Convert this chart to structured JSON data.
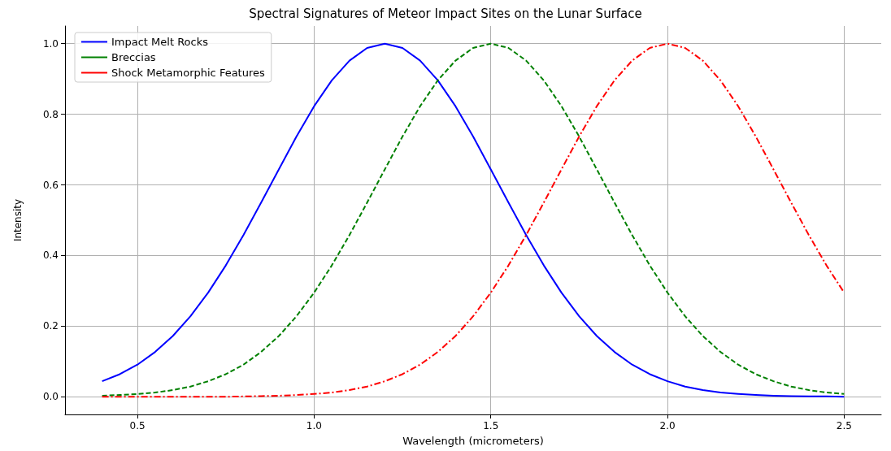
{
  "chart_data": {
    "type": "line",
    "title": "Spectral Signatures of Meteor Impact Sites on the Lunar Surface",
    "xlabel": "Wavelength (micrometers)",
    "ylabel": "Intensity",
    "x": [
      0.4,
      0.45,
      0.5,
      0.55,
      0.6,
      0.65,
      0.7,
      0.75,
      0.8,
      0.85,
      0.9,
      0.95,
      1.0,
      1.05,
      1.1,
      1.15,
      1.2,
      1.25,
      1.3,
      1.35,
      1.4,
      1.45,
      1.5,
      1.55,
      1.6,
      1.65,
      1.7,
      1.75,
      1.8,
      1.85,
      1.9,
      1.95,
      2.0,
      2.05,
      2.1,
      2.15,
      2.2,
      2.25,
      2.3,
      2.35,
      2.4,
      2.45,
      2.5
    ],
    "series": [
      {
        "name": "Impact Melt Rocks",
        "color": "#0000ff",
        "line_style": "solid",
        "values": [
          0.044,
          0.064,
          0.091,
          0.127,
          0.172,
          0.228,
          0.295,
          0.372,
          0.458,
          0.55,
          0.644,
          0.737,
          0.823,
          0.896,
          0.952,
          0.988,
          1,
          0.988,
          0.952,
          0.896,
          0.823,
          0.737,
          0.644,
          0.55,
          0.458,
          0.372,
          0.295,
          0.228,
          0.172,
          0.127,
          0.091,
          0.064,
          0.044,
          0.029,
          0.019,
          0.012,
          0.008,
          0.005,
          0.003,
          0.002,
          0.001,
          0.001,
          0.0
        ]
      },
      {
        "name": "Breccias",
        "color": "#008000",
        "line_style": "dashed",
        "values": [
          0.003,
          0.005,
          0.008,
          0.012,
          0.019,
          0.029,
          0.044,
          0.064,
          0.091,
          0.127,
          0.172,
          0.228,
          0.295,
          0.372,
          0.458,
          0.55,
          0.644,
          0.737,
          0.823,
          0.896,
          0.952,
          0.988,
          1,
          0.988,
          0.952,
          0.896,
          0.823,
          0.737,
          0.644,
          0.55,
          0.458,
          0.372,
          0.295,
          0.228,
          0.172,
          0.127,
          0.091,
          0.064,
          0.044,
          0.029,
          0.019,
          0.012,
          0.008
        ]
      },
      {
        "name": "Shock Metamorphic Features",
        "color": "#ff0000",
        "line_style": "dashdot",
        "values": [
          0,
          0,
          0,
          0,
          0,
          0,
          0,
          0,
          0.001,
          0.002,
          0.003,
          0.005,
          0.008,
          0.012,
          0.019,
          0.029,
          0.044,
          0.064,
          0.091,
          0.127,
          0.172,
          0.228,
          0.295,
          0.372,
          0.458,
          0.55,
          0.644,
          0.737,
          0.823,
          0.896,
          0.952,
          0.988,
          1,
          0.988,
          0.952,
          0.896,
          0.823,
          0.737,
          0.644,
          0.55,
          0.458,
          0.372,
          0.295
        ]
      }
    ],
    "xlim": [
      0.295,
      2.605
    ],
    "xticks": [
      0.5,
      {
        "value": 1,
        "label": "1.0"
      },
      1.5,
      {
        "value": 2,
        "label": "2.0"
      },
      2.5
    ],
    "ylim": [
      -0.05,
      1.05
    ],
    "yticks": [
      {
        "value": 0,
        "label": "0.0"
      },
      {
        "value": 0.2,
        "label": "0.2"
      },
      {
        "value": 0.4,
        "label": "0.4"
      },
      {
        "value": 0.6,
        "label": "0.6"
      },
      {
        "value": 0.8,
        "label": "0.8"
      },
      {
        "value": 1,
        "label": "1.0"
      }
    ],
    "grid": true,
    "legend": "top left",
    "marker": "none"
  }
}
